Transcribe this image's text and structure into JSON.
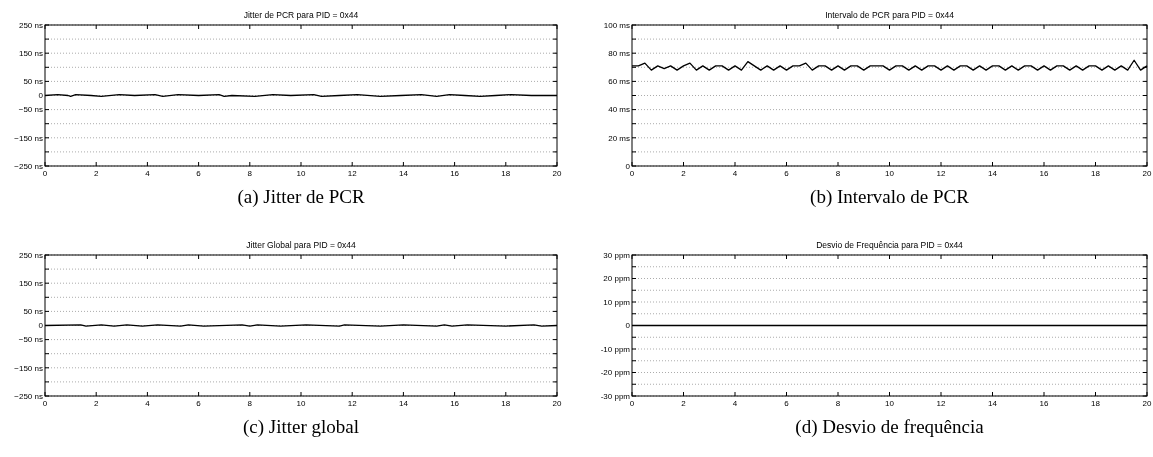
{
  "chart_data": [
    {
      "type": "line",
      "title": "Jitter de PCR para PID = 0x44",
      "annotations": [
        "(a) Jitter de PCR"
      ],
      "x": [
        0,
        0.5,
        0.9,
        1.0,
        1.2,
        1.8,
        2.2,
        2.9,
        3.5,
        4.3,
        4.6,
        5.2,
        6.0,
        6.8,
        7.0,
        7.3,
        8.2,
        8.9,
        9.6,
        10.5,
        10.8,
        11.5,
        12.2,
        13.1,
        13.9,
        14.7,
        15.3,
        15.8,
        16.4,
        17.0,
        17.6,
        18.2,
        19.0,
        20
      ],
      "series": [
        {
          "color": "#000000",
          "values": [
            0,
            3,
            0,
            -3,
            3,
            0,
            -3,
            3,
            0,
            3,
            -3,
            3,
            0,
            3,
            -3,
            0,
            -3,
            3,
            0,
            3,
            -3,
            0,
            3,
            -3,
            0,
            3,
            -3,
            3,
            0,
            -3,
            0,
            3,
            0,
            0
          ]
        }
      ],
      "xlim": [
        0,
        20
      ],
      "xticks": [
        0,
        2,
        4,
        6,
        8,
        10,
        12,
        14,
        16,
        18,
        20
      ],
      "ylim": [
        -250,
        250
      ],
      "yticks": [
        {
          "value": -250,
          "label": "−250 ns"
        },
        {
          "value": -200,
          "label": null
        },
        {
          "value": -150,
          "label": "−150 ns"
        },
        {
          "value": -100,
          "label": null
        },
        {
          "value": -50,
          "label": "−50 ns"
        },
        {
          "value": 0,
          "label": "0"
        },
        {
          "value": 50,
          "label": "50 ns"
        },
        {
          "value": 100,
          "label": null
        },
        {
          "value": 150,
          "label": "150 ns"
        },
        {
          "value": 200,
          "label": null
        },
        {
          "value": 250,
          "label": "250 ns"
        }
      ],
      "grid": "y",
      "line_style": "solid"
    },
    {
      "type": "line",
      "title": "Intervalo de PCR para PID = 0x44",
      "annotations": [
        "(b) Intervalo de PCR"
      ],
      "x": [
        0,
        0.25,
        0.5,
        0.75,
        1,
        1.25,
        1.5,
        1.75,
        2,
        2.25,
        2.5,
        2.75,
        3,
        3.25,
        3.5,
        3.75,
        4,
        4.25,
        4.5,
        4.75,
        5,
        5.25,
        5.5,
        5.75,
        6,
        6.25,
        6.5,
        6.75,
        7,
        7.25,
        7.5,
        7.75,
        8,
        8.25,
        8.5,
        8.75,
        9,
        9.25,
        9.5,
        9.75,
        10,
        10.25,
        10.5,
        10.75,
        11,
        11.25,
        11.5,
        11.75,
        12,
        12.25,
        12.5,
        12.75,
        13,
        13.25,
        13.5,
        13.75,
        14,
        14.25,
        14.5,
        14.75,
        15,
        15.25,
        15.5,
        15.75,
        16,
        16.25,
        16.5,
        16.75,
        17,
        17.25,
        17.5,
        17.75,
        18,
        18.25,
        18.5,
        18.75,
        19,
        19.25,
        19.5,
        19.75,
        20
      ],
      "series": [
        {
          "color": "#000000",
          "values": [
            71,
            71,
            73,
            68,
            71,
            69,
            71,
            68,
            71,
            73,
            68,
            71,
            68,
            71,
            71,
            68,
            71,
            68,
            74,
            71,
            68,
            71,
            68,
            71,
            68,
            71,
            71,
            73,
            68,
            71,
            71,
            68,
            71,
            68,
            71,
            71,
            68,
            71,
            71,
            71,
            68,
            71,
            71,
            68,
            71,
            68,
            71,
            71,
            68,
            71,
            68,
            71,
            71,
            68,
            71,
            68,
            71,
            71,
            68,
            71,
            68,
            71,
            71,
            68,
            71,
            68,
            71,
            71,
            68,
            71,
            68,
            71,
            71,
            68,
            71,
            68,
            71,
            68,
            75,
            68,
            71
          ]
        }
      ],
      "xlim": [
        0,
        20
      ],
      "xticks": [
        0,
        2,
        4,
        6,
        8,
        10,
        12,
        14,
        16,
        18,
        20
      ],
      "ylim": [
        0,
        100
      ],
      "yticks": [
        {
          "value": 0,
          "label": "0"
        },
        {
          "value": 10,
          "label": null
        },
        {
          "value": 20,
          "label": "20 ms"
        },
        {
          "value": 30,
          "label": null
        },
        {
          "value": 40,
          "label": "40 ms"
        },
        {
          "value": 50,
          "label": null
        },
        {
          "value": 60,
          "label": "60 ms"
        },
        {
          "value": 70,
          "label": null
        },
        {
          "value": 80,
          "label": "80 ms"
        },
        {
          "value": 90,
          "label": null
        },
        {
          "value": 100,
          "label": "100 ms"
        }
      ],
      "grid": "y",
      "line_style": "solid"
    },
    {
      "type": "line",
      "title": "Jitter Global para PID = 0x44",
      "annotations": [
        "(c) Jitter global"
      ],
      "x": [
        0,
        1.4,
        1.6,
        2.2,
        2.7,
        3.2,
        3.8,
        4.4,
        5.3,
        5.6,
        6.2,
        7.7,
        8.0,
        8.3,
        9.2,
        10.2,
        11.5,
        11.7,
        13.1,
        14.0,
        15.3,
        15.6,
        15.9,
        16.5,
        18.0,
        19.1,
        19.4,
        20
      ],
      "series": [
        {
          "color": "#000000",
          "values": [
            0,
            2,
            -2,
            2,
            -2,
            2,
            -2,
            2,
            -2,
            2,
            -2,
            2,
            -2,
            2,
            -2,
            2,
            -2,
            2,
            -2,
            2,
            -2,
            2,
            -2,
            2,
            -2,
            2,
            -2,
            0
          ]
        }
      ],
      "xlim": [
        0,
        20
      ],
      "xticks": [
        0,
        2,
        4,
        6,
        8,
        10,
        12,
        14,
        16,
        18,
        20
      ],
      "ylim": [
        -250,
        250
      ],
      "yticks": [
        {
          "value": -250,
          "label": "−250 ns"
        },
        {
          "value": -200,
          "label": null
        },
        {
          "value": -150,
          "label": "−150 ns"
        },
        {
          "value": -100,
          "label": null
        },
        {
          "value": -50,
          "label": "−50 ns"
        },
        {
          "value": 0,
          "label": "0"
        },
        {
          "value": 50,
          "label": "50 ns"
        },
        {
          "value": 100,
          "label": null
        },
        {
          "value": 150,
          "label": "150 ns"
        },
        {
          "value": 200,
          "label": null
        },
        {
          "value": 250,
          "label": "250 ns"
        }
      ],
      "grid": "y",
      "line_style": "solid"
    },
    {
      "type": "line",
      "title": "Desvio de Frequência para PID = 0x44",
      "annotations": [
        "(d) Desvio de frequência"
      ],
      "x": [
        0,
        5,
        10,
        15,
        20
      ],
      "series": [
        {
          "color": "#000000",
          "values": [
            0,
            0,
            0,
            0,
            0
          ]
        }
      ],
      "xlim": [
        0,
        20
      ],
      "xticks": [
        0,
        2,
        4,
        6,
        8,
        10,
        12,
        14,
        16,
        18,
        20
      ],
      "ylim": [
        -30,
        30
      ],
      "yticks": [
        {
          "value": -30,
          "label": "-30 ppm"
        },
        {
          "value": -25,
          "label": null
        },
        {
          "value": -20,
          "label": "-20 ppm"
        },
        {
          "value": -15,
          "label": null
        },
        {
          "value": -10,
          "label": "-10 ppm"
        },
        {
          "value": -5,
          "label": null
        },
        {
          "value": 0,
          "label": "0"
        },
        {
          "value": 5,
          "label": null
        },
        {
          "value": 10,
          "label": "10 ppm"
        },
        {
          "value": 15,
          "label": null
        },
        {
          "value": 20,
          "label": "20 ppm"
        },
        {
          "value": 25,
          "label": null
        },
        {
          "value": 30,
          "label": "30 ppm"
        }
      ],
      "grid": "y",
      "line_style": "solid"
    }
  ]
}
